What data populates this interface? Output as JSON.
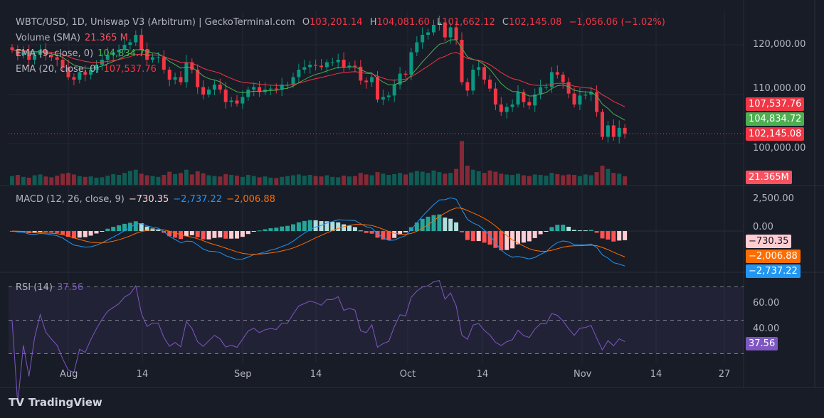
{
  "header": {
    "title": "WBTC/USD, 1D, Uniswap V3 (Arbitrum) | GeckoTerminal.com",
    "o_label": "O",
    "o": "103,201.14",
    "h_label": "H",
    "h": "104,081.60",
    "l_label": "L",
    "l": "101,662.12",
    "c_label": "C",
    "c": "102,145.08",
    "change": "−1,056.06 (−1.02%)"
  },
  "legend": {
    "volume_label": "Volume (SMA)",
    "volume_value": "21.365 M",
    "ema9_label": "EMA (9, close, 0)",
    "ema9_value": "104,834.72",
    "ema20_label": "EMA (20, close, 0)",
    "ema20_value": "107,537.76",
    "macd_label": "MACD (12, 26, close, 9)",
    "macd_hist": "−730.35",
    "macd_line": "−2,737.22",
    "macd_signal": "−2,006.88",
    "rsi_label": "RSI (14)",
    "rsi_value": "37.56"
  },
  "price_axis": {
    "ticks": [
      "120,000.00",
      "110,000.00",
      "100,000.00"
    ],
    "tags": {
      "ema20": "107,537.76",
      "ema9": "104,834.72",
      "close": "102,145.08",
      "volume": "21.365M"
    }
  },
  "macd_axis": {
    "ticks": [
      "2,500.00",
      "0.00"
    ],
    "tags": {
      "hist": "−730.35",
      "signal": "−2,006.88",
      "macd": "−2,737.22"
    }
  },
  "rsi_axis": {
    "ticks": [
      "60.00",
      "40.00"
    ],
    "tag": "37.56"
  },
  "time_axis": [
    "Aug",
    "14",
    "Sep",
    "14",
    "Oct",
    "14",
    "Nov",
    "14",
    "27"
  ],
  "footer": {
    "brand": "TradingView"
  },
  "colors": {
    "up": "#089981",
    "down": "#f23645",
    "ema9": "#4caf50",
    "ema20": "#f23645",
    "macd": "#2196f3",
    "signal": "#ff6d00",
    "rsi": "#7e57c2"
  },
  "chart_data": {
    "type": "candlestick",
    "start_date": "Jul 22",
    "interval": "1D",
    "ylim": [
      95000,
      126000
    ],
    "close": [
      119000,
      118000,
      118500,
      117000,
      118000,
      119000,
      118000,
      117500,
      117000,
      115500,
      113500,
      113000,
      114500,
      114000,
      115000,
      116000,
      117000,
      118000,
      118500,
      119000,
      120000,
      120500,
      122000,
      119000,
      117000,
      117500,
      117500,
      115000,
      113000,
      113500,
      112500,
      116500,
      115000,
      111500,
      110000,
      111000,
      112000,
      111000,
      108500,
      108800,
      108200,
      109500,
      111000,
      111500,
      110500,
      111000,
      111200,
      111000,
      112000,
      112000,
      113500,
      115000,
      115500,
      116000,
      115800,
      115500,
      116500,
      116500,
      117000,
      115500,
      115800,
      115600,
      112800,
      112500,
      113500,
      109000,
      109500,
      109800,
      112000,
      114200,
      114000,
      118500,
      120500,
      122000,
      122500,
      124000,
      124500,
      121500,
      123500,
      121000,
      112500,
      110800,
      115000,
      115500,
      113000,
      111200,
      108000,
      106500,
      107500,
      108000,
      110500,
      108500,
      107800,
      110000,
      111500,
      111500,
      114500,
      114000,
      112500,
      110200,
      108000,
      109800,
      110000,
      110500,
      106500,
      101500,
      103800,
      101500,
      103300,
      102145
    ],
    "volume_m": [
      22,
      25,
      20,
      18,
      24,
      26,
      21,
      19,
      23,
      28,
      30,
      26,
      22,
      20,
      21,
      18,
      19,
      23,
      27,
      25,
      30,
      35,
      38,
      28,
      24,
      22,
      20,
      25,
      33,
      27,
      30,
      38,
      26,
      34,
      29,
      24,
      22,
      21,
      27,
      25,
      23,
      20,
      25,
      22,
      19,
      21,
      18,
      17,
      20,
      22,
      24,
      26,
      23,
      25,
      22,
      21,
      24,
      20,
      19,
      23,
      21,
      22,
      30,
      26,
      24,
      32,
      28,
      25,
      27,
      30,
      26,
      31,
      35,
      33,
      30,
      36,
      32,
      28,
      30,
      40,
      110,
      48,
      38,
      34,
      30,
      36,
      33,
      28,
      26,
      25,
      28,
      24,
      22,
      26,
      25,
      23,
      30,
      27,
      24,
      26,
      25,
      22,
      26,
      24,
      32,
      48,
      40,
      30,
      28,
      21.365
    ]
  }
}
